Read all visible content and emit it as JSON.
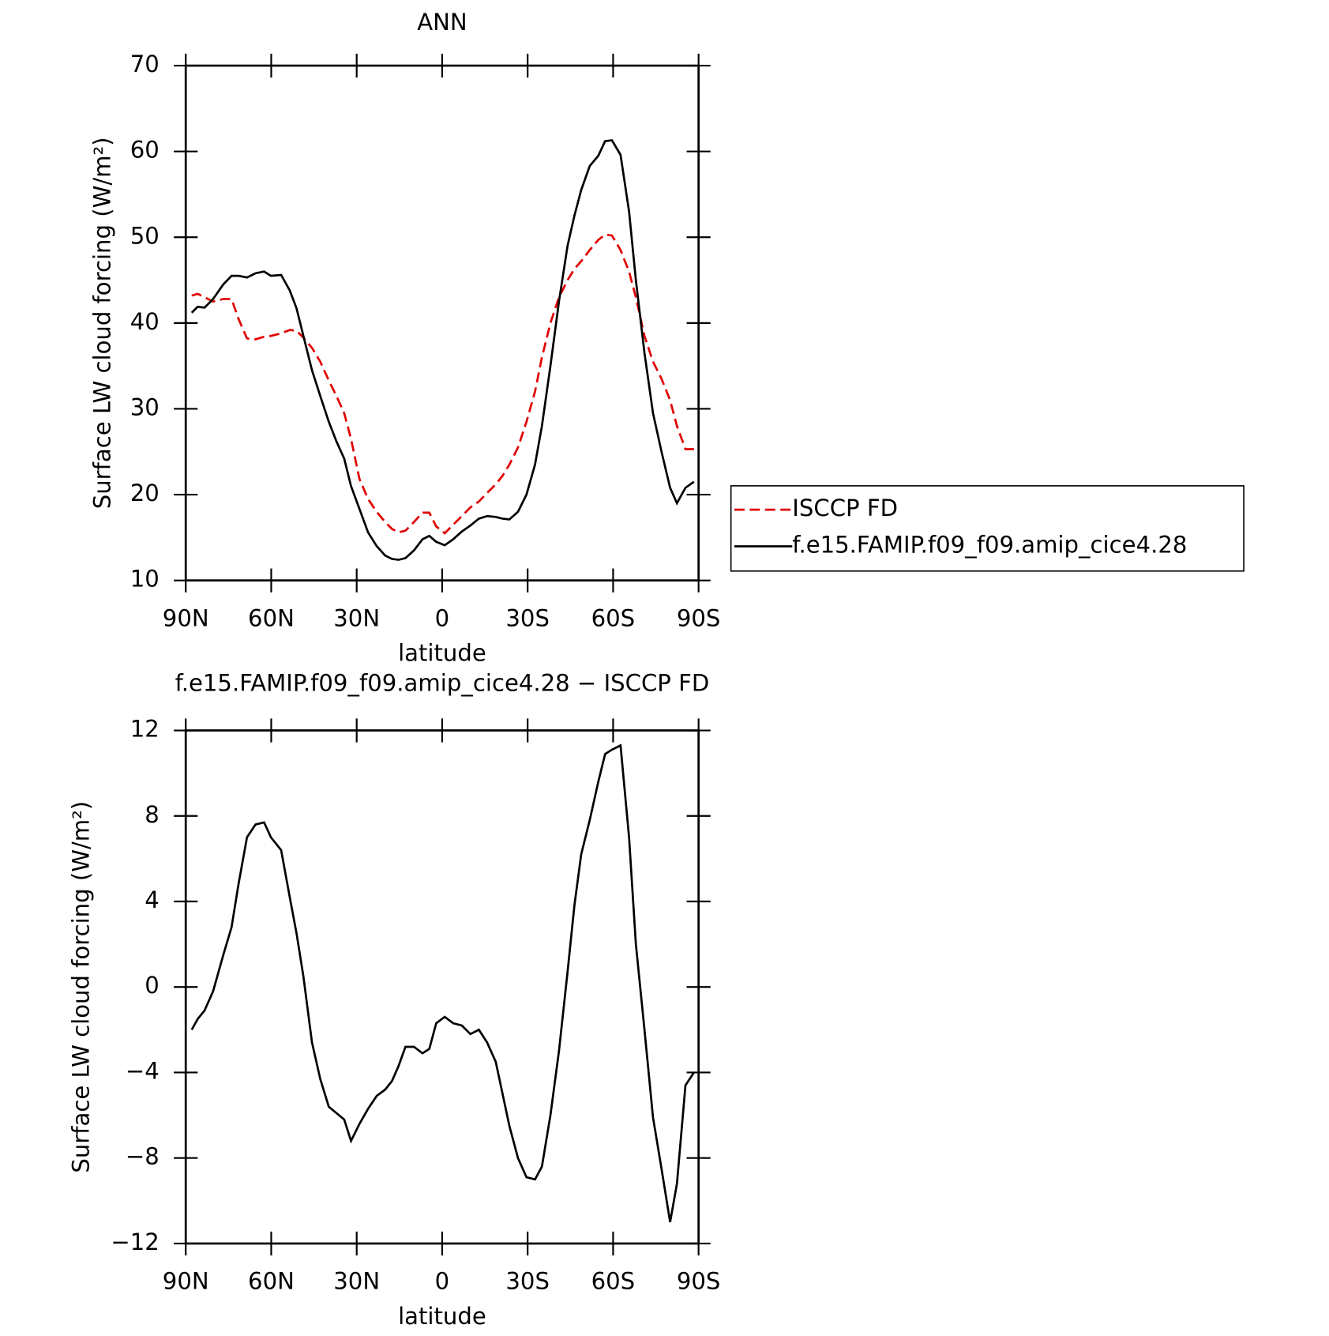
{
  "chart_data": [
    {
      "type": "line",
      "title": "ANN",
      "xlabel": "latitude",
      "ylabel": "Surface LW cloud forcing (W/m²)",
      "x": [
        87.9,
        85.8,
        83.4,
        80.4,
        76.8,
        73.9,
        71.5,
        68.5,
        65.5,
        62.5,
        60.1,
        56.5,
        53.5,
        51.1,
        48.7,
        45.7,
        42.8,
        39.8,
        37.1,
        34.4,
        32.0,
        29.0,
        26.0,
        23.0,
        20.0,
        17.6,
        15.3,
        12.9,
        9.9,
        6.9,
        4.5,
        2.1,
        -0.9,
        -3.9,
        -6.9,
        -9.9,
        -12.9,
        -15.8,
        -18.8,
        -21.2,
        -23.6,
        -26.6,
        -29.6,
        -32.6,
        -35.0,
        -38.0,
        -41.0,
        -44.0,
        -46.4,
        -48.8,
        -51.8,
        -54.8,
        -57.2,
        -59.6,
        -62.6,
        -65.6,
        -68.0,
        -71.0,
        -74.0,
        -77.0,
        -80.0,
        -82.4,
        -85.4,
        -88.4
      ],
      "series": [
        {
          "name": "ISCCP FD",
          "color": "#e00000",
          "style": "dashed",
          "values": [
            43.2,
            43.4,
            43.0,
            42.5,
            42.8,
            42.8,
            40.5,
            38.2,
            38.1,
            38.4,
            38.5,
            38.8,
            39.2,
            39.1,
            38.3,
            37.1,
            35.5,
            33.3,
            31.5,
            29.5,
            26.5,
            21.8,
            19.5,
            18.0,
            16.8,
            16.0,
            15.6,
            15.8,
            16.8,
            17.9,
            17.9,
            16.3,
            15.5,
            16.5,
            17.5,
            18.5,
            19.2,
            20.2,
            21.2,
            22.2,
            23.5,
            25.5,
            28.5,
            32.0,
            36.0,
            40.0,
            43.0,
            45.0,
            46.3,
            47.2,
            48.5,
            49.7,
            50.3,
            50.2,
            48.5,
            46.0,
            43.0,
            38.5,
            35.5,
            33.5,
            31.0,
            28.0,
            25.3,
            25.3
          ]
        },
        {
          "name": "f.e15.FAMIP.f09_f09.amip_cice4.28",
          "color": "#000000",
          "style": "solid",
          "values": [
            41.2,
            41.9,
            41.8,
            42.8,
            44.5,
            45.5,
            45.5,
            45.3,
            45.8,
            46.0,
            45.5,
            45.6,
            43.8,
            41.7,
            38.5,
            34.5,
            31.5,
            28.5,
            26.2,
            24.2,
            21.0,
            18.3,
            15.6,
            14.0,
            12.9,
            12.5,
            12.4,
            12.6,
            13.5,
            14.8,
            15.2,
            14.5,
            14.1,
            14.8,
            15.7,
            16.4,
            17.2,
            17.5,
            17.4,
            17.2,
            17.1,
            18.0,
            20.0,
            23.5,
            28.0,
            35.0,
            42.5,
            49.0,
            52.5,
            55.5,
            58.3,
            59.5,
            61.2,
            61.3,
            59.6,
            53.0,
            45.0,
            36.5,
            29.5,
            25.0,
            20.8,
            19.0,
            20.8,
            21.5
          ]
        }
      ],
      "xlim": [
        90,
        -90
      ],
      "xticks": [
        {
          "value": 90,
          "label": "90N"
        },
        {
          "value": 60,
          "label": "60N"
        },
        {
          "value": 30,
          "label": "30N"
        },
        0,
        {
          "value": -30,
          "label": "30S"
        },
        {
          "value": -60,
          "label": "60S"
        },
        {
          "value": -90,
          "label": "90S"
        }
      ],
      "ylim": [
        10,
        70
      ],
      "yticks": [
        10,
        20,
        30,
        40,
        50,
        60,
        70
      ],
      "legend": "right"
    },
    {
      "type": "line",
      "title": "f.e15.FAMIP.f09_f09.amip_cice4.28 − ISCCP FD",
      "xlabel": "latitude",
      "ylabel": "Surface LW cloud forcing (W/m²)",
      "x": [
        87.9,
        85.8,
        83.4,
        80.4,
        76.8,
        73.9,
        71.5,
        68.5,
        65.5,
        62.5,
        60.1,
        56.5,
        53.5,
        51.1,
        48.7,
        45.7,
        42.8,
        39.8,
        37.1,
        34.4,
        32.0,
        29.0,
        26.0,
        23.0,
        20.0,
        17.6,
        15.3,
        12.9,
        9.9,
        6.9,
        4.5,
        2.1,
        -0.9,
        -3.9,
        -6.9,
        -9.9,
        -12.9,
        -15.8,
        -18.8,
        -21.2,
        -23.6,
        -26.6,
        -29.6,
        -32.6,
        -35.0,
        -38.0,
        -41.0,
        -44.0,
        -46.4,
        -48.8,
        -51.8,
        -54.8,
        -57.2,
        -59.6,
        -62.6,
        -65.6,
        -68.0,
        -71.0,
        -74.0,
        -77.0,
        -80.0,
        -82.4,
        -85.4,
        -88.4
      ],
      "series": [
        {
          "color": "#000000",
          "style": "solid",
          "values": [
            -2.0,
            -1.5,
            -1.1,
            -0.2,
            1.5,
            2.8,
            4.8,
            7.0,
            7.6,
            7.7,
            7.0,
            6.4,
            4.2,
            2.5,
            0.5,
            -2.6,
            -4.3,
            -5.6,
            -5.9,
            -6.2,
            -7.2,
            -6.4,
            -5.7,
            -5.1,
            -4.8,
            -4.4,
            -3.7,
            -2.8,
            -2.8,
            -3.1,
            -2.9,
            -1.7,
            -1.4,
            -1.7,
            -1.8,
            -2.2,
            -2.0,
            -2.6,
            -3.5,
            -5.0,
            -6.5,
            -8.0,
            -8.9,
            -9.0,
            -8.4,
            -6.0,
            -3.0,
            0.7,
            3.8,
            6.2,
            7.8,
            9.6,
            10.9,
            11.1,
            11.3,
            7.0,
            2.0,
            -2.0,
            -6.1,
            -8.5,
            -11.0,
            -9.2,
            -4.6,
            -4.0
          ]
        }
      ],
      "xlim": [
        90,
        -90
      ],
      "xticks": [
        {
          "value": 90,
          "label": "90N"
        },
        {
          "value": 60,
          "label": "60N"
        },
        {
          "value": 30,
          "label": "30N"
        },
        0,
        {
          "value": -30,
          "label": "30S"
        },
        {
          "value": -60,
          "label": "60S"
        },
        {
          "value": -90,
          "label": "90S"
        }
      ],
      "ylim": [
        -12,
        12
      ],
      "yticks": [
        {
          "value": -12,
          "label": "−12"
        },
        {
          "value": -8,
          "label": "−8"
        },
        {
          "value": -4,
          "label": "−4"
        },
        0,
        4,
        8,
        12
      ]
    }
  ]
}
